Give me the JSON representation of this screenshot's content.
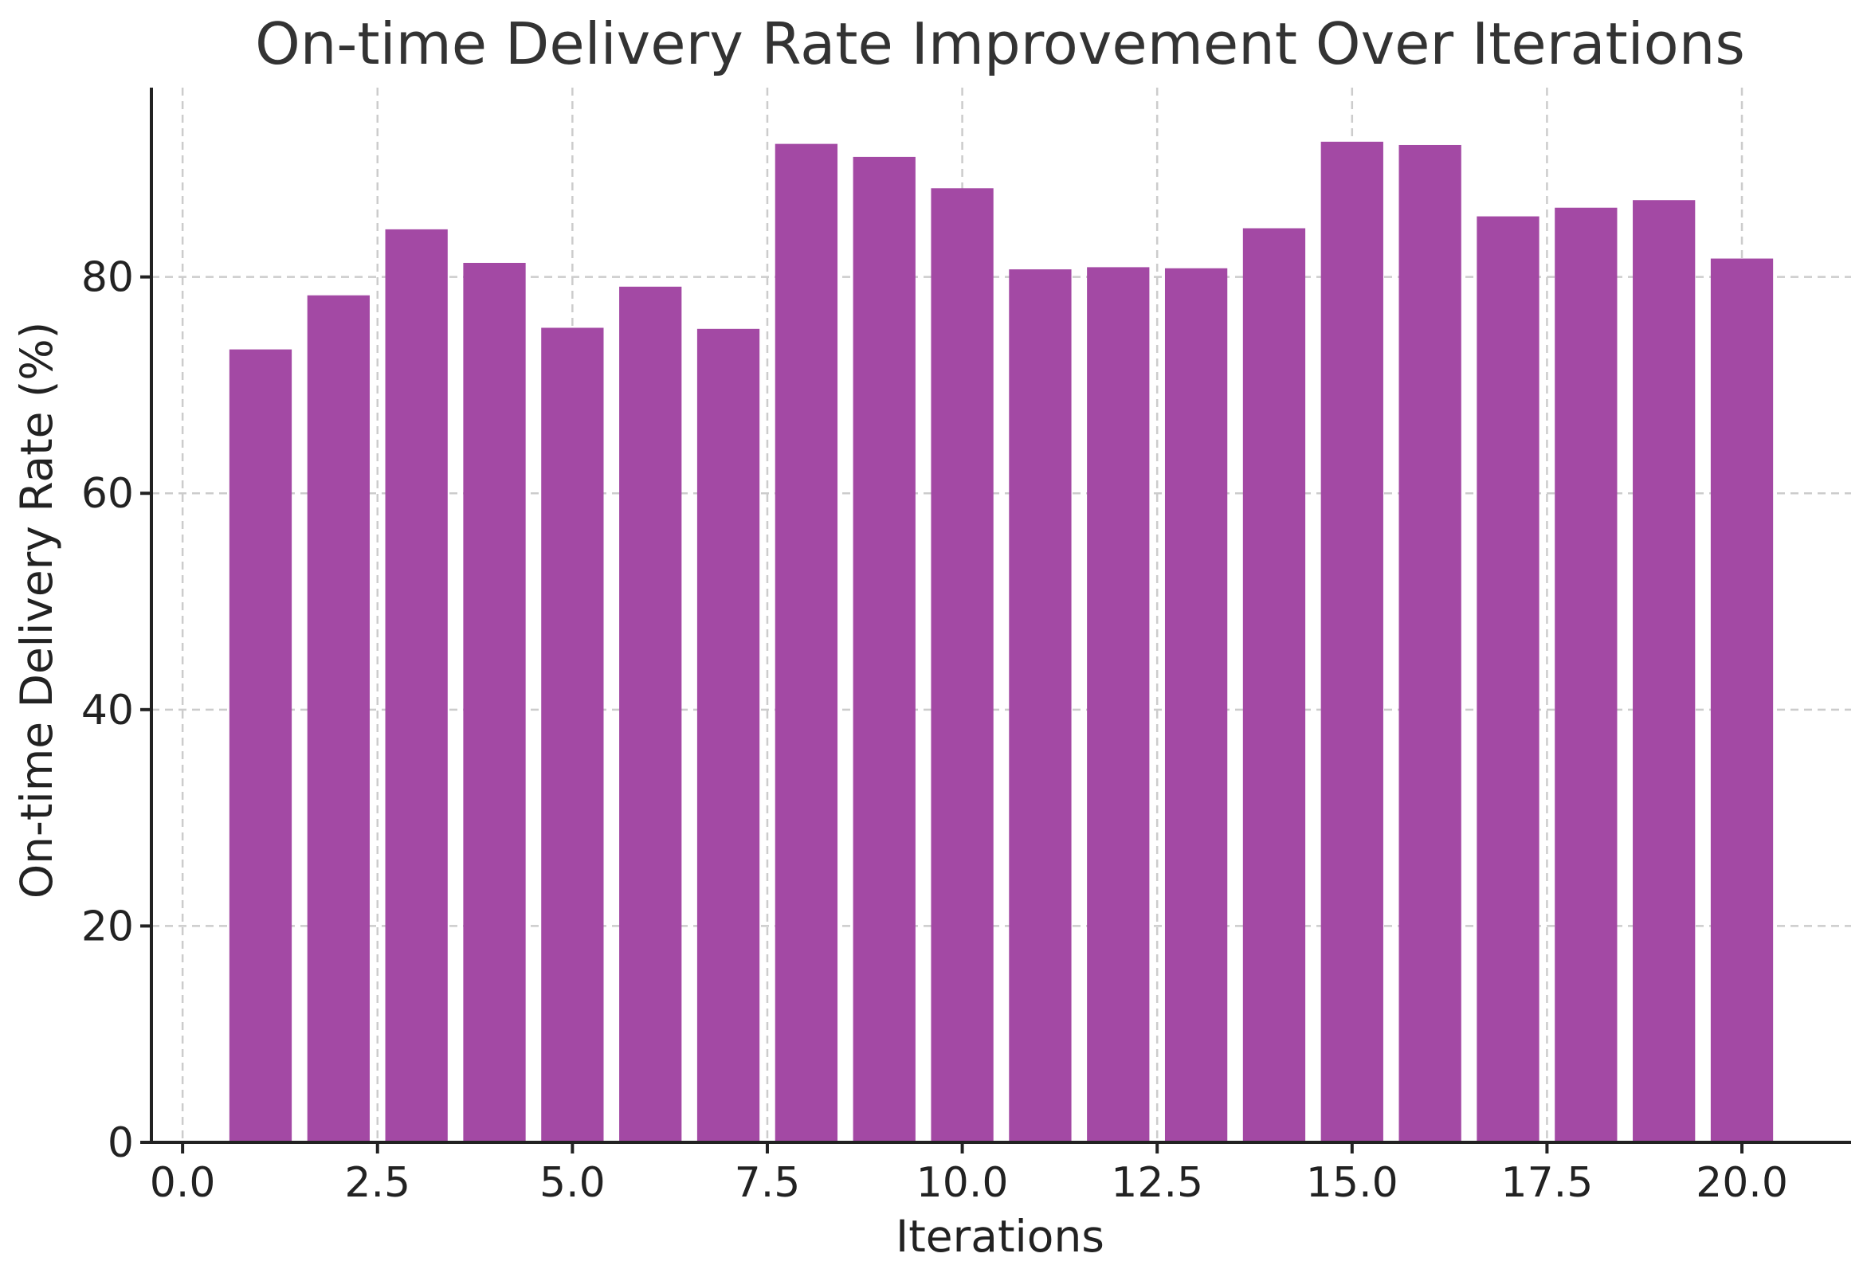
{
  "chart_data": {
    "type": "bar",
    "title": "On-time Delivery Rate Improvement Over Iterations",
    "xlabel": "Iterations",
    "ylabel": "On-time Delivery Rate (%)",
    "x": [
      1,
      2,
      3,
      4,
      5,
      6,
      7,
      8,
      9,
      10,
      11,
      12,
      13,
      14,
      15,
      16,
      17,
      18,
      19,
      20
    ],
    "values": [
      73.3,
      78.3,
      84.4,
      81.3,
      75.3,
      79.1,
      75.2,
      92.3,
      91.1,
      88.2,
      80.7,
      80.9,
      80.8,
      84.5,
      92.5,
      92.2,
      85.6,
      86.4,
      87.1,
      81.7
    ],
    "xlim": [
      -0.4,
      21.4
    ],
    "ylim": [
      0,
      97.5
    ],
    "xticks": [
      0.0,
      2.5,
      5.0,
      7.5,
      10.0,
      12.5,
      15.0,
      17.5,
      20.0
    ],
    "xtick_labels": [
      "0.0",
      "2.5",
      "5.0",
      "7.5",
      "10.0",
      "12.5",
      "15.0",
      "17.5",
      "20.0"
    ],
    "yticks": [
      0,
      20,
      40,
      60,
      80
    ],
    "ytick_labels": [
      "0",
      "20",
      "40",
      "60",
      "80"
    ],
    "bar_color": "#a349a4",
    "grid": true,
    "legend": false
  }
}
